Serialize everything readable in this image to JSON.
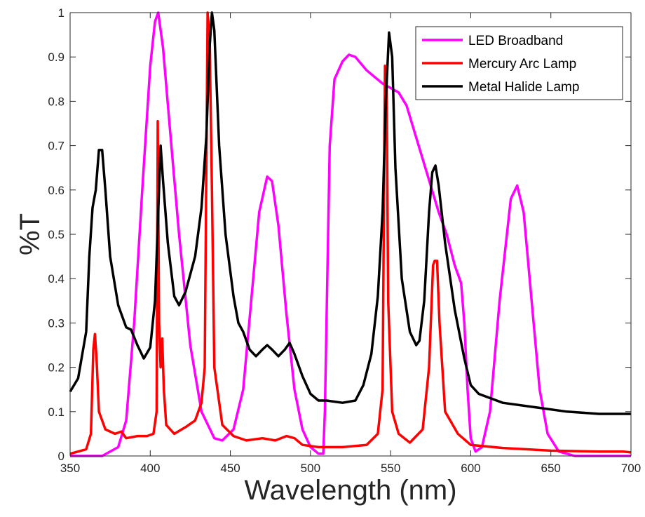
{
  "chart_data": {
    "type": "line",
    "title": "",
    "xlabel": "Wavelength (nm)",
    "ylabel": "%T",
    "xlim": [
      350,
      700
    ],
    "ylim": [
      0,
      1
    ],
    "x_ticks": [
      "350",
      "400",
      "450",
      "500",
      "550",
      "600",
      "650",
      "700"
    ],
    "y_ticks": [
      "0",
      "0.1",
      "0.2",
      "0.3",
      "0.4",
      "0.5",
      "0.6",
      "0.7",
      "0.8",
      "0.9",
      "1"
    ],
    "grid": false,
    "legend_position": "top-right",
    "series": [
      {
        "name": "LED Broadband",
        "color": "#ff00ff",
        "points": [
          [
            350,
            0.0
          ],
          [
            370,
            0.0
          ],
          [
            380,
            0.02
          ],
          [
            385,
            0.08
          ],
          [
            390,
            0.3
          ],
          [
            395,
            0.6
          ],
          [
            400,
            0.88
          ],
          [
            403,
            0.98
          ],
          [
            405,
            1.0
          ],
          [
            408,
            0.92
          ],
          [
            412,
            0.75
          ],
          [
            418,
            0.5
          ],
          [
            425,
            0.25
          ],
          [
            432,
            0.1
          ],
          [
            440,
            0.04
          ],
          [
            445,
            0.035
          ],
          [
            452,
            0.06
          ],
          [
            458,
            0.15
          ],
          [
            463,
            0.35
          ],
          [
            468,
            0.55
          ],
          [
            473,
            0.63
          ],
          [
            476,
            0.62
          ],
          [
            480,
            0.52
          ],
          [
            485,
            0.32
          ],
          [
            490,
            0.15
          ],
          [
            495,
            0.06
          ],
          [
            500,
            0.02
          ],
          [
            505,
            0.005
          ],
          [
            508,
            0.005
          ],
          [
            509,
            0.1
          ],
          [
            512,
            0.7
          ],
          [
            515,
            0.85
          ],
          [
            520,
            0.89
          ],
          [
            524,
            0.905
          ],
          [
            528,
            0.9
          ],
          [
            535,
            0.87
          ],
          [
            545,
            0.84
          ],
          [
            555,
            0.82
          ],
          [
            560,
            0.79
          ],
          [
            565,
            0.73
          ],
          [
            570,
            0.67
          ],
          [
            575,
            0.61
          ],
          [
            580,
            0.55
          ],
          [
            585,
            0.5
          ],
          [
            590,
            0.43
          ],
          [
            594,
            0.39
          ],
          [
            596,
            0.3
          ],
          [
            598,
            0.15
          ],
          [
            600,
            0.04
          ],
          [
            603,
            0.01
          ],
          [
            607,
            0.02
          ],
          [
            612,
            0.1
          ],
          [
            618,
            0.35
          ],
          [
            625,
            0.58
          ],
          [
            629,
            0.61
          ],
          [
            633,
            0.55
          ],
          [
            638,
            0.35
          ],
          [
            643,
            0.15
          ],
          [
            648,
            0.05
          ],
          [
            655,
            0.01
          ],
          [
            665,
            0.0
          ],
          [
            700,
            0.0
          ]
        ]
      },
      {
        "name": "Mercury Arc Lamp",
        "color": "#ff0000",
        "points": [
          [
            350,
            0.005
          ],
          [
            355,
            0.01
          ],
          [
            360,
            0.015
          ],
          [
            363,
            0.05
          ],
          [
            364.5,
            0.24
          ],
          [
            365.5,
            0.275
          ],
          [
            366.5,
            0.22
          ],
          [
            368,
            0.1
          ],
          [
            372,
            0.06
          ],
          [
            378,
            0.05
          ],
          [
            382,
            0.055
          ],
          [
            385,
            0.04
          ],
          [
            392,
            0.045
          ],
          [
            398,
            0.045
          ],
          [
            402,
            0.05
          ],
          [
            404,
            0.1
          ],
          [
            404.7,
            0.755
          ],
          [
            405.5,
            0.3
          ],
          [
            406.5,
            0.2
          ],
          [
            407.5,
            0.265
          ],
          [
            408.5,
            0.15
          ],
          [
            410,
            0.07
          ],
          [
            415,
            0.05
          ],
          [
            422,
            0.065
          ],
          [
            428,
            0.08
          ],
          [
            432,
            0.12
          ],
          [
            434,
            0.2
          ],
          [
            435.8,
            1.0
          ],
          [
            437,
            0.95
          ],
          [
            438.5,
            0.6
          ],
          [
            440,
            0.2
          ],
          [
            445,
            0.07
          ],
          [
            452,
            0.045
          ],
          [
            460,
            0.035
          ],
          [
            470,
            0.04
          ],
          [
            478,
            0.035
          ],
          [
            485,
            0.045
          ],
          [
            490,
            0.04
          ],
          [
            495,
            0.025
          ],
          [
            505,
            0.02
          ],
          [
            520,
            0.02
          ],
          [
            535,
            0.025
          ],
          [
            542,
            0.05
          ],
          [
            545,
            0.15
          ],
          [
            546.5,
            0.88
          ],
          [
            547.5,
            0.85
          ],
          [
            548.5,
            0.35
          ],
          [
            551,
            0.1
          ],
          [
            555,
            0.05
          ],
          [
            562,
            0.03
          ],
          [
            570,
            0.06
          ],
          [
            574,
            0.2
          ],
          [
            576.5,
            0.43
          ],
          [
            577.5,
            0.44
          ],
          [
            579,
            0.44
          ],
          [
            580.5,
            0.3
          ],
          [
            584,
            0.1
          ],
          [
            592,
            0.05
          ],
          [
            600,
            0.025
          ],
          [
            620,
            0.018
          ],
          [
            650,
            0.012
          ],
          [
            680,
            0.01
          ],
          [
            695,
            0.01
          ],
          [
            700,
            0.008
          ]
        ]
      },
      {
        "name": "Metal Halide Lamp",
        "color": "#000000",
        "points": [
          [
            350,
            0.145
          ],
          [
            355,
            0.175
          ],
          [
            360,
            0.28
          ],
          [
            362,
            0.45
          ],
          [
            364,
            0.56
          ],
          [
            366,
            0.6
          ],
          [
            368,
            0.69
          ],
          [
            370,
            0.69
          ],
          [
            372,
            0.6
          ],
          [
            375,
            0.45
          ],
          [
            380,
            0.34
          ],
          [
            385,
            0.29
          ],
          [
            388,
            0.285
          ],
          [
            392,
            0.25
          ],
          [
            396,
            0.22
          ],
          [
            400,
            0.245
          ],
          [
            403,
            0.35
          ],
          [
            405,
            0.55
          ],
          [
            406.5,
            0.7
          ],
          [
            408,
            0.62
          ],
          [
            411,
            0.48
          ],
          [
            415,
            0.36
          ],
          [
            418,
            0.34
          ],
          [
            422,
            0.37
          ],
          [
            428,
            0.45
          ],
          [
            432,
            0.56
          ],
          [
            435,
            0.72
          ],
          [
            437,
            0.92
          ],
          [
            438.5,
            1.0
          ],
          [
            440,
            0.96
          ],
          [
            443,
            0.7
          ],
          [
            447,
            0.5
          ],
          [
            452,
            0.36
          ],
          [
            455,
            0.3
          ],
          [
            458,
            0.28
          ],
          [
            462,
            0.24
          ],
          [
            466,
            0.225
          ],
          [
            470,
            0.24
          ],
          [
            473,
            0.25
          ],
          [
            476,
            0.24
          ],
          [
            480,
            0.225
          ],
          [
            484,
            0.24
          ],
          [
            487,
            0.255
          ],
          [
            490,
            0.23
          ],
          [
            495,
            0.18
          ],
          [
            500,
            0.14
          ],
          [
            505,
            0.125
          ],
          [
            510,
            0.125
          ],
          [
            520,
            0.12
          ],
          [
            528,
            0.125
          ],
          [
            533,
            0.16
          ],
          [
            538,
            0.23
          ],
          [
            542,
            0.36
          ],
          [
            545,
            0.55
          ],
          [
            547,
            0.8
          ],
          [
            549,
            0.955
          ],
          [
            551,
            0.9
          ],
          [
            553,
            0.65
          ],
          [
            557,
            0.4
          ],
          [
            562,
            0.28
          ],
          [
            566,
            0.25
          ],
          [
            568,
            0.26
          ],
          [
            571,
            0.35
          ],
          [
            574,
            0.55
          ],
          [
            576,
            0.64
          ],
          [
            578,
            0.655
          ],
          [
            580,
            0.61
          ],
          [
            584,
            0.48
          ],
          [
            590,
            0.33
          ],
          [
            596,
            0.22
          ],
          [
            600,
            0.16
          ],
          [
            605,
            0.14
          ],
          [
            620,
            0.12
          ],
          [
            640,
            0.11
          ],
          [
            660,
            0.1
          ],
          [
            680,
            0.095
          ],
          [
            700,
            0.095
          ]
        ]
      }
    ]
  }
}
